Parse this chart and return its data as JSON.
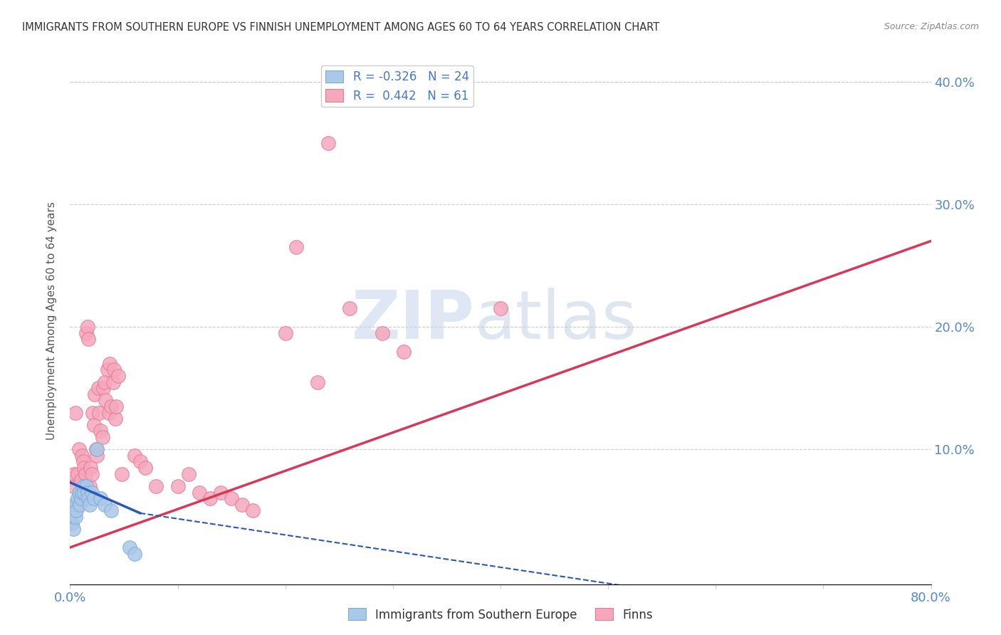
{
  "title": "IMMIGRANTS FROM SOUTHERN EUROPE VS FINNISH UNEMPLOYMENT AMONG AGES 60 TO 64 YEARS CORRELATION CHART",
  "source": "Source: ZipAtlas.com",
  "ylabel": "Unemployment Among Ages 60 to 64 years",
  "xlim": [
    0,
    0.8
  ],
  "ylim": [
    -0.01,
    0.42
  ],
  "legend_R_blue": "R = -0.326",
  "legend_N_blue": "N = 24",
  "legend_R_pink": "R =  0.442",
  "legend_N_pink": "N = 61",
  "legend_label_blue": "Immigrants from Southern Europe",
  "legend_label_pink": "Finns",
  "blue_color": "#aac8e8",
  "pink_color": "#f5a8bc",
  "blue_edge": "#80aad8",
  "pink_edge": "#e87898",
  "trend_blue_solid": "#2858b8",
  "trend_pink_solid": "#d83858",
  "watermark_zip": "ZIP",
  "watermark_atlas": "atlas",
  "blue_scatter_x": [
    0.002,
    0.003,
    0.004,
    0.005,
    0.006,
    0.007,
    0.008,
    0.009,
    0.01,
    0.011,
    0.012,
    0.013,
    0.015,
    0.016,
    0.017,
    0.018,
    0.02,
    0.022,
    0.025,
    0.028,
    0.032,
    0.038,
    0.055,
    0.06
  ],
  "blue_scatter_y": [
    0.04,
    0.035,
    0.055,
    0.045,
    0.05,
    0.06,
    0.065,
    0.055,
    0.06,
    0.065,
    0.07,
    0.065,
    0.07,
    0.065,
    0.06,
    0.055,
    0.065,
    0.06,
    0.1,
    0.06,
    0.055,
    0.05,
    0.02,
    0.015
  ],
  "pink_scatter_x": [
    0.001,
    0.003,
    0.004,
    0.005,
    0.006,
    0.007,
    0.008,
    0.009,
    0.01,
    0.011,
    0.012,
    0.013,
    0.014,
    0.015,
    0.016,
    0.017,
    0.018,
    0.019,
    0.02,
    0.021,
    0.022,
    0.023,
    0.024,
    0.025,
    0.026,
    0.027,
    0.028,
    0.03,
    0.031,
    0.032,
    0.033,
    0.035,
    0.036,
    0.037,
    0.038,
    0.04,
    0.041,
    0.042,
    0.043,
    0.045,
    0.048,
    0.06,
    0.065,
    0.07,
    0.08,
    0.1,
    0.11,
    0.12,
    0.13,
    0.14,
    0.15,
    0.16,
    0.17,
    0.2,
    0.21,
    0.23,
    0.24,
    0.26,
    0.29,
    0.31,
    0.4
  ],
  "pink_scatter_y": [
    0.04,
    0.07,
    0.08,
    0.13,
    0.055,
    0.08,
    0.1,
    0.065,
    0.075,
    0.095,
    0.09,
    0.085,
    0.08,
    0.195,
    0.2,
    0.19,
    0.07,
    0.085,
    0.08,
    0.13,
    0.12,
    0.145,
    0.1,
    0.095,
    0.15,
    0.13,
    0.115,
    0.11,
    0.15,
    0.155,
    0.14,
    0.165,
    0.13,
    0.17,
    0.135,
    0.155,
    0.165,
    0.125,
    0.135,
    0.16,
    0.08,
    0.095,
    0.09,
    0.085,
    0.07,
    0.07,
    0.08,
    0.065,
    0.06,
    0.065,
    0.06,
    0.055,
    0.05,
    0.195,
    0.265,
    0.155,
    0.35,
    0.215,
    0.195,
    0.18,
    0.215
  ],
  "pink_trend_x0": 0.0,
  "pink_trend_y0": 0.02,
  "pink_trend_x1": 0.8,
  "pink_trend_y1": 0.27,
  "blue_trend_solid_x0": 0.0,
  "blue_trend_solid_y0": 0.073,
  "blue_trend_solid_x1": 0.065,
  "blue_trend_solid_y1": 0.048,
  "blue_trend_dashed_x0": 0.065,
  "blue_trend_dashed_y0": 0.048,
  "blue_trend_dashed_x1": 0.52,
  "blue_trend_dashed_y1": -0.012
}
